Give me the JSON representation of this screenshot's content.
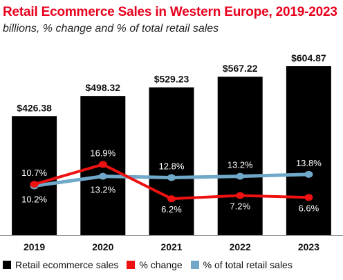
{
  "chart_data": {
    "type": "bar",
    "title": "Retail Ecommerce Sales in Western Europe, 2019-2023",
    "subtitle": "billions, % change and % of total retail sales",
    "categories": [
      "2019",
      "2020",
      "2021",
      "2022",
      "2023"
    ],
    "series": [
      {
        "name": "Retail ecommerce sales",
        "type": "bar",
        "values": [
          426.38,
          498.32,
          529.23,
          567.22,
          604.87
        ],
        "labels": [
          "$426.38",
          "$498.32",
          "$529.23",
          "$567.22",
          "$604.87"
        ],
        "color": "#000000"
      },
      {
        "name": "% change",
        "type": "line",
        "values": [
          10.7,
          16.9,
          6.2,
          7.2,
          6.6
        ],
        "labels": [
          "10.7%",
          "16.9%",
          "6.2%",
          "7.2%",
          "6.6%"
        ],
        "color": "#ee1111"
      },
      {
        "name": "% of total retail sales",
        "type": "line",
        "values": [
          10.2,
          13.2,
          12.8,
          13.2,
          13.8
        ],
        "labels": [
          "10.2%",
          "13.2%",
          "12.8%",
          "13.2%",
          "13.8%"
        ],
        "color": "#6fa8c8"
      }
    ],
    "ylim": [
      0,
      620
    ],
    "grid": false,
    "legend_position": "bottom"
  }
}
